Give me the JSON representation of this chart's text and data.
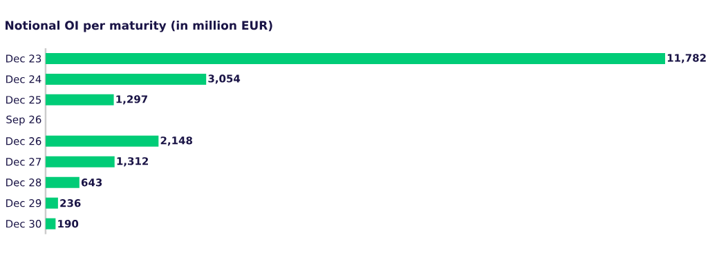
{
  "chart_data": {
    "type": "bar",
    "orientation": "horizontal",
    "title": "Notional OI per maturity (in million EUR)",
    "categories": [
      "Dec 23",
      "Dec 24",
      "Dec 25",
      "Sep 26",
      "Dec 26",
      "Dec 27",
      "Dec 28",
      "Dec 29",
      "Dec 30"
    ],
    "values": [
      11782,
      3054,
      1297,
      null,
      2148,
      1312,
      643,
      236,
      190
    ],
    "value_labels": [
      "11,782",
      "3,054",
      "1,297",
      null,
      "2,148",
      "1,312",
      "643",
      "236",
      "190"
    ],
    "color": "#00cc77",
    "tick_labels": "y"
  }
}
